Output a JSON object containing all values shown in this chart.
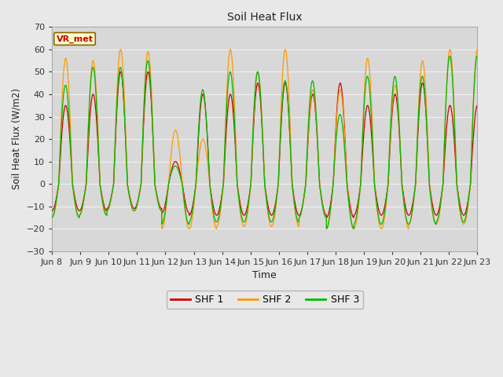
{
  "title": "Soil Heat Flux",
  "ylabel": "Soil Heat Flux (W/m2)",
  "xlabel": "Time",
  "ylim": [
    -30,
    70
  ],
  "yticks": [
    -30,
    -20,
    -10,
    0,
    10,
    20,
    30,
    40,
    50,
    60,
    70
  ],
  "fig_bg_color": "#e8e8e8",
  "plot_bg_color": "#d8d8d8",
  "grid_color": "#f0f0f0",
  "shf1_color": "#cc0000",
  "shf2_color": "#ff9900",
  "shf3_color": "#00bb00",
  "legend_label1": "SHF 1",
  "legend_label2": "SHF 2",
  "legend_label3": "SHF 3",
  "vr_met_label": "VR_met",
  "xtick_labels": [
    "Jun 8",
    "Jun 9",
    "Jun 10",
    "Jun 11",
    "Jun 12",
    "Jun 13",
    "Jun 14",
    "Jun 15",
    "Jun 16",
    "Jun 17",
    "Jun 18",
    "Jun 19",
    "Jun 20",
    "Jun 21",
    "Jun 22",
    "Jun 23"
  ],
  "days": 15.5,
  "n_points": 8000,
  "shf1_pos": [
    35,
    40,
    50,
    50,
    10,
    40,
    40,
    45,
    45,
    40,
    45,
    35,
    40,
    45,
    35,
    35
  ],
  "shf1_neg": [
    12,
    12,
    11,
    11,
    13,
    14,
    14,
    14,
    14,
    14,
    15,
    14,
    14,
    14,
    14,
    14
  ],
  "shf2_pos": [
    56,
    55,
    60,
    59,
    24,
    20,
    60,
    50,
    60,
    42,
    42,
    56,
    44,
    55,
    60,
    60
  ],
  "shf2_neg": [
    15,
    14,
    12,
    12,
    20,
    20,
    19,
    19,
    19,
    15,
    20,
    20,
    20,
    18,
    18,
    18
  ],
  "shf3_pos": [
    44,
    52,
    52,
    55,
    8,
    42,
    50,
    50,
    46,
    46,
    31,
    48,
    48,
    48,
    57,
    57
  ],
  "shf3_neg": [
    15,
    14,
    12,
    12,
    18,
    17,
    17,
    17,
    17,
    15,
    20,
    18,
    18,
    18,
    17,
    17
  ]
}
